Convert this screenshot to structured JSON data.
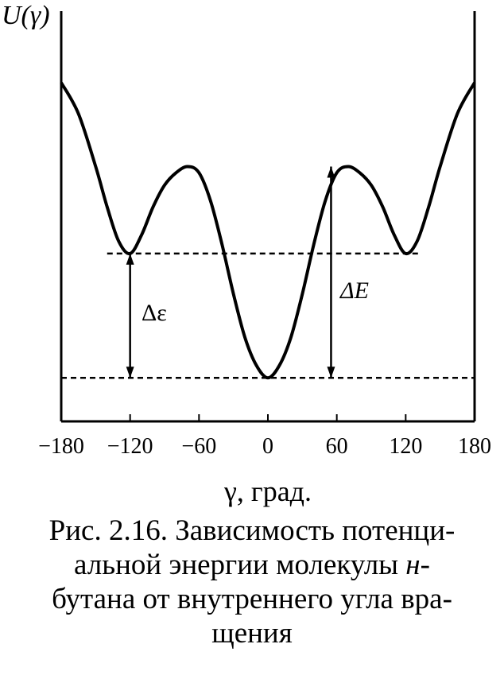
{
  "chart_data": {
    "type": "line",
    "ylabel": "U(γ)",
    "xlabel": "γ, град.",
    "xlim": [
      -180,
      180
    ],
    "x_ticks": [
      "−180",
      "−120",
      "−60",
      "0",
      "60",
      "120",
      "180"
    ],
    "x_tick_values": [
      -180,
      -120,
      -60,
      0,
      60,
      120,
      180
    ],
    "y_ticks": [],
    "grid": false,
    "legend": "none",
    "series": [
      {
        "x": [
          -180,
          -165,
          -150,
          -140,
          -130,
          -120,
          -110,
          -100,
          -90,
          -80,
          -70,
          -60,
          -50,
          -40,
          -30,
          -20,
          -10,
          0,
          10,
          20,
          30,
          40,
          50,
          60,
          70,
          80,
          90,
          100,
          110,
          120,
          130,
          140,
          150,
          165,
          180
        ],
        "y": [
          0.95,
          0.85,
          0.68,
          0.55,
          0.44,
          0.4,
          0.46,
          0.55,
          0.62,
          0.66,
          0.68,
          0.66,
          0.57,
          0.43,
          0.27,
          0.13,
          0.04,
          0.0,
          0.04,
          0.13,
          0.27,
          0.43,
          0.57,
          0.66,
          0.68,
          0.66,
          0.62,
          0.55,
          0.46,
          0.4,
          0.44,
          0.55,
          0.68,
          0.85,
          0.95
        ]
      }
    ],
    "reference_lines": [
      {
        "y": 0.4,
        "style": "dashed",
        "x_from": -140,
        "x_to": 132
      },
      {
        "y": 0.0,
        "style": "dashed",
        "x_from": -180,
        "x_to": 180
      }
    ],
    "annotations": [
      {
        "text": "Δε",
        "x": -120,
        "y_from": 0.0,
        "y_to": 0.4
      },
      {
        "text": "ΔE",
        "x": 55,
        "y_from": 0.0,
        "y_to": 0.68
      }
    ],
    "ylim": [
      -0.14,
      1.18
    ],
    "color": "#000000"
  },
  "caption": {
    "line1": "Рис. 2.16. Зависимость потенци-",
    "line2_a": "альной энергии молекулы ",
    "line2_italic": "н",
    "line2_b": "-",
    "line3": "бутана от внутреннего угла вра-",
    "line4": "щения"
  }
}
